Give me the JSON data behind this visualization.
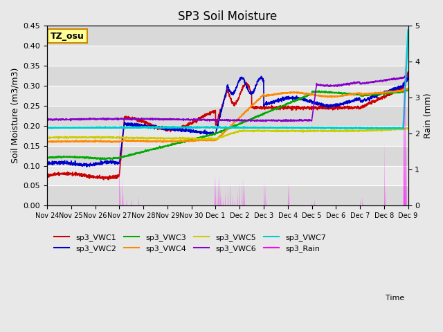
{
  "title": "SP3 Soil Moisture",
  "ylabel_left": "Soil Moisture (m3/m3)",
  "ylabel_right": "Rain (mm)",
  "xlabel": "Time",
  "ylim_left": [
    0.0,
    0.45
  ],
  "ylim_right": [
    0.0,
    5.0
  ],
  "background_color": "#e8e8e8",
  "annotation_text": "TZ_osu",
  "annotation_box_color": "#ffff99",
  "annotation_box_edge": "#cc8800",
  "xtick_labels": [
    "Nov 24",
    "Nov 25",
    "Nov 26",
    "Nov 27",
    "Nov 28",
    "Nov 29",
    "Nov 30",
    "Dec 1",
    "Dec 2",
    "Dec 3",
    "Dec 4",
    "Dec 5",
    "Dec 6",
    "Dec 7",
    "Dec 8",
    "Dec 9"
  ],
  "colors": {
    "vwc1": "#cc0000",
    "vwc2": "#0000cc",
    "vwc3": "#00aa00",
    "vwc4": "#ff8800",
    "vwc5": "#cccc00",
    "vwc6": "#8800cc",
    "vwc7": "#00cccc",
    "rain": "#ff00ff"
  }
}
